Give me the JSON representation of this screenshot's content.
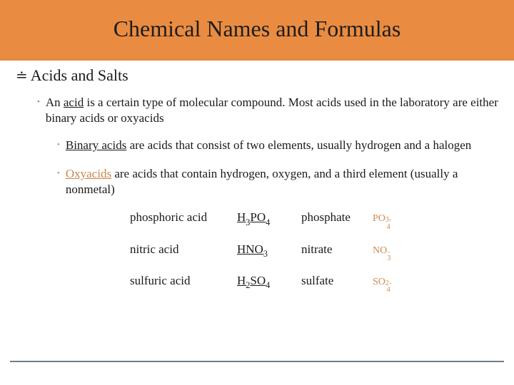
{
  "colors": {
    "slide_bg": "#ffffff",
    "title_bg": "#e98c41",
    "title_text": "#1d1d1d",
    "body_text": "#1a1a1a",
    "bullet1_dot": "#7a8aa0",
    "bullet2_dot": "#d5894e",
    "oxyacid_color": "#c9864f",
    "ion_color": "#cf8a50",
    "hr_color": "#6e7c91"
  },
  "title": "Chemical Names and Formulas",
  "section": {
    "scribble": "≐",
    "label": "Acids and Salts"
  },
  "bullet_main": {
    "prefix": "An ",
    "underlined": "acid",
    "rest": " is a certain type of molecular compound. Most acids used in the laboratory are either binary acids or oxyacids"
  },
  "bullet_binary": {
    "underlined": "Binary acids",
    "rest": " are acids that consist of two elements, usually hydrogen and a halogen"
  },
  "bullet_oxy": {
    "underlined": "Oxyacids",
    "rest": " are acids that contain hydrogen, oxygen, and a third element (usually a nonmetal)"
  },
  "table": [
    {
      "name": "phosphoric acid",
      "formula_parts": [
        "H",
        "3",
        "PO",
        "4"
      ],
      "ion_name": "phosphate",
      "ion_base": "PO",
      "ion_sup": "3-",
      "ion_sub": "4"
    },
    {
      "name": "nitric acid",
      "formula_parts": [
        "HNO",
        "3",
        "",
        ""
      ],
      "ion_name": "nitrate",
      "ion_base": "NO",
      "ion_sup": "-",
      "ion_sub": "3"
    },
    {
      "name": "sulfuric acid",
      "formula_parts": [
        "H",
        "2",
        "SO",
        "4"
      ],
      "ion_name": "sulfate",
      "ion_base": "SO",
      "ion_sup": "2-",
      "ion_sub": "4"
    }
  ]
}
